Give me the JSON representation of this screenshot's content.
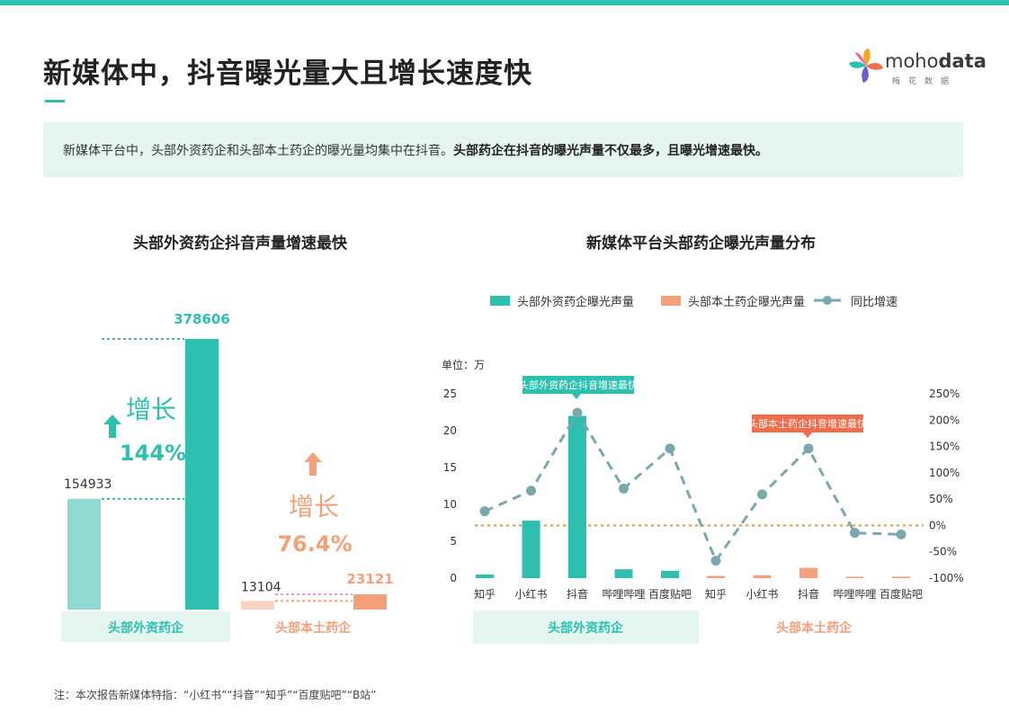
{
  "title": "新媒体中，抖音曝光量大且增长速度快",
  "logo": {
    "word_light": "moho",
    "word_bold": "data",
    "sub": "梅花数据"
  },
  "summary": {
    "normal": "新媒体平台中，头部外资药企和头部本土药企的曝光量均集中在抖音。",
    "bold": "头部药企在抖音的曝光声量不仅最多，且曝光增速最快。"
  },
  "footnote": "注：本次报告新媒体特指：“小红书”“抖音”“知乎”“百度贴吧”“B站”",
  "colors": {
    "teal": "#2dbfb0",
    "teal_light": "#8fd9d1",
    "orange": "#f4a07a",
    "orange_light": "#fad3c0",
    "orange_dark": "#f26b4a",
    "dash": "#7aa8ad"
  },
  "chart_data": [
    {
      "type": "bar",
      "title": "头部外资药企抖音声量增速最快",
      "groups": [
        {
          "name": "头部外资药企",
          "values": [
            154933,
            378606
          ],
          "value_labels": [
            "154933",
            "378606"
          ],
          "growth_label": "增长",
          "growth_value": "144%"
        },
        {
          "name": "头部本土药企",
          "values": [
            13104,
            23121
          ],
          "value_labels": [
            "13104",
            "23121"
          ],
          "growth_label": "增长",
          "growth_value": "76.4%"
        }
      ]
    },
    {
      "type": "bar+line",
      "title": "新媒体平台头部药企曝光声量分布",
      "legend": [
        "头部外资药企曝光声量",
        "头部本土药企曝光声量",
        "同比增速"
      ],
      "unit_label": "单位：万",
      "y_left": {
        "min": 0,
        "max": 25,
        "ticks": [
          "0",
          "5",
          "10",
          "15",
          "20",
          "25"
        ]
      },
      "y_right": {
        "min": -100,
        "max": 250,
        "ticks": [
          "-100%",
          "-50%",
          "0%",
          "50%",
          "100%",
          "150%",
          "200%",
          "250%"
        ]
      },
      "groups": [
        {
          "name": "头部外资药企",
          "categories": [
            "知乎",
            "小红书",
            "抖音",
            "哔哩哔哩",
            "百度贴吧"
          ],
          "values": [
            0.5,
            7.8,
            22.0,
            1.2,
            1.0
          ],
          "growth": [
            27,
            66,
            214,
            70,
            146
          ],
          "annotation": "头部外资药企抖音增速最快"
        },
        {
          "name": "头部本土药企",
          "categories": [
            "知乎",
            "小红书",
            "抖音",
            "哔哩哔哩",
            "百度贴吧"
          ],
          "values": [
            0.3,
            0.4,
            1.4,
            0.2,
            0.2
          ],
          "growth": [
            -67,
            59,
            146,
            -14,
            -17
          ],
          "annotation": "头部本土药企抖音增速最快"
        }
      ]
    }
  ]
}
